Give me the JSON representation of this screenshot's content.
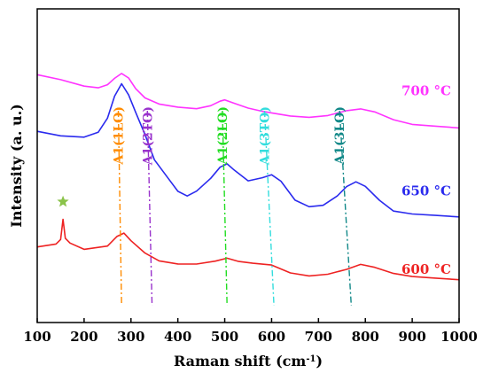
{
  "chart_data": {
    "type": "line",
    "xlabel": "Raman shift (cm",
    "xlabel_sup": "-1",
    "xlabel_close": ")",
    "ylabel": "Intensity (a. u.)",
    "xlim": [
      100,
      1000
    ],
    "ylim": [
      0,
      10
    ],
    "xticks": [
      "100",
      "200",
      "300",
      "400",
      "500",
      "600",
      "700",
      "800",
      "900",
      "1000"
    ],
    "grid": false,
    "series": [
      {
        "name": "700 °C",
        "color": "#ff33ff",
        "x": [
          100,
          150,
          200,
          230,
          250,
          265,
          280,
          295,
          310,
          330,
          360,
          400,
          440,
          470,
          490,
          500,
          520,
          550,
          580,
          600,
          640,
          680,
          720,
          760,
          790,
          820,
          860,
          900,
          950,
          1000
        ],
        "y": [
          7.9,
          7.75,
          7.55,
          7.5,
          7.6,
          7.8,
          7.95,
          7.8,
          7.45,
          7.15,
          6.95,
          6.85,
          6.8,
          6.9,
          7.05,
          7.1,
          7.0,
          6.85,
          6.75,
          6.7,
          6.6,
          6.55,
          6.6,
          6.75,
          6.8,
          6.7,
          6.45,
          6.3,
          6.25,
          6.2
        ]
      },
      {
        "name": "650 °C",
        "color": "#2a2aee",
        "x": [
          100,
          150,
          200,
          230,
          250,
          265,
          280,
          295,
          310,
          330,
          350,
          380,
          400,
          420,
          440,
          470,
          490,
          505,
          520,
          550,
          580,
          600,
          620,
          650,
          680,
          710,
          740,
          760,
          780,
          800,
          830,
          860,
          900,
          950,
          1000
        ],
        "y": [
          6.1,
          5.95,
          5.9,
          6.05,
          6.5,
          7.2,
          7.6,
          7.25,
          6.7,
          6.0,
          5.2,
          4.6,
          4.2,
          4.05,
          4.2,
          4.6,
          4.95,
          5.05,
          4.85,
          4.5,
          4.6,
          4.7,
          4.5,
          3.9,
          3.7,
          3.75,
          4.05,
          4.35,
          4.5,
          4.35,
          3.9,
          3.55,
          3.45,
          3.4,
          3.35
        ]
      },
      {
        "name": "600 °C",
        "color": "#ee2222",
        "x": [
          100,
          140,
          150,
          155,
          160,
          170,
          200,
          250,
          270,
          285,
          300,
          330,
          360,
          400,
          440,
          480,
          505,
          530,
          560,
          600,
          640,
          680,
          720,
          760,
          790,
          820,
          860,
          900,
          950,
          1000
        ],
        "y": [
          2.4,
          2.5,
          2.65,
          3.3,
          2.7,
          2.55,
          2.35,
          2.45,
          2.75,
          2.85,
          2.6,
          2.2,
          1.95,
          1.85,
          1.85,
          1.95,
          2.05,
          1.95,
          1.9,
          1.85,
          1.6,
          1.5,
          1.55,
          1.7,
          1.85,
          1.75,
          1.55,
          1.45,
          1.4,
          1.35
        ]
      }
    ],
    "series_labels": [
      {
        "text": "700 °C",
        "color": "#ff33ff",
        "x": 930,
        "y": 7.25
      },
      {
        "text": "650 °C",
        "color": "#2a2aee",
        "x": 930,
        "y": 4.05
      },
      {
        "text": "600 °C",
        "color": "#ee2222",
        "x": 930,
        "y": 1.55
      }
    ],
    "annotations": [
      {
        "text": "A1(1LO)",
        "color": "#ff8c00",
        "x_top": 273,
        "x_bottom": 280
      },
      {
        "text": "A1(2TO)",
        "color": "#9932cc",
        "x_top": 335,
        "x_bottom": 345
      },
      {
        "text": "A1(2LO)",
        "color": "#22dd22",
        "x_top": 495,
        "x_bottom": 505
      },
      {
        "text": "A1(3TO)",
        "color": "#33dddd",
        "x_top": 585,
        "x_bottom": 605
      },
      {
        "text": "A1(3LO)",
        "color": "#118888",
        "x_top": 745,
        "x_bottom": 770
      }
    ],
    "star": {
      "x": 155,
      "y": 3.85,
      "color": "#8bc34a"
    }
  }
}
